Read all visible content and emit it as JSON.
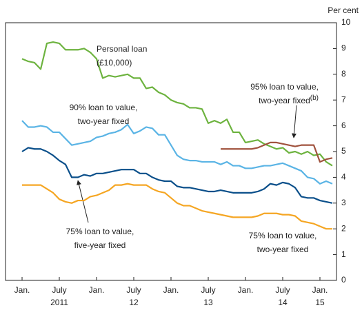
{
  "chart_data": {
    "type": "line",
    "y_axis_label": "Per cent",
    "x": [
      "2011-01",
      "2011-02",
      "2011-03",
      "2011-04",
      "2011-05",
      "2011-06",
      "2011-07",
      "2011-08",
      "2011-09",
      "2011-10",
      "2011-11",
      "2011-12",
      "2012-01",
      "2012-02",
      "2012-03",
      "2012-04",
      "2012-05",
      "2012-06",
      "2012-07",
      "2012-08",
      "2012-09",
      "2012-10",
      "2012-11",
      "2012-12",
      "2013-01",
      "2013-02",
      "2013-03",
      "2013-04",
      "2013-05",
      "2013-06",
      "2013-07",
      "2013-08",
      "2013-09",
      "2013-10",
      "2013-11",
      "2013-12",
      "2014-01",
      "2014-02",
      "2014-03",
      "2014-04",
      "2014-05",
      "2014-06",
      "2014-07",
      "2014-08",
      "2014-09",
      "2014-10",
      "2014-11",
      "2014-12",
      "2015-01",
      "2015-02",
      "2015-03"
    ],
    "xticks": [
      {
        "value": "2011-01",
        "label": "Jan."
      },
      {
        "value": "2011-07",
        "label": "July"
      },
      {
        "value": "2012-01",
        "label": "Jan."
      },
      {
        "value": "2012-07",
        "label": "July"
      },
      {
        "value": "2013-01",
        "label": "Jan."
      },
      {
        "value": "2013-07",
        "label": "July"
      },
      {
        "value": "2014-01",
        "label": "Jan."
      },
      {
        "value": "2014-07",
        "label": "July"
      },
      {
        "value": "2015-01",
        "label": "Jan."
      }
    ],
    "year_labels": [
      {
        "value": "2011-07",
        "label": "2011"
      },
      {
        "value": "2012-07",
        "label": "12"
      },
      {
        "value": "2013-07",
        "label": "13"
      },
      {
        "value": "2014-07",
        "label": "14"
      },
      {
        "value": "2015-01",
        "label": "15"
      }
    ],
    "ylim": [
      0,
      10
    ],
    "yticks": [
      0,
      1,
      2,
      3,
      4,
      5,
      6,
      7,
      8,
      9,
      10
    ],
    "series": [
      {
        "label": [
          "Personal loan",
          "(£10,000)"
        ],
        "color": "#6db33f",
        "values": [
          8.6,
          8.5,
          8.45,
          8.2,
          9.2,
          9.25,
          9.2,
          8.95,
          8.95,
          8.95,
          9.0,
          8.85,
          8.6,
          7.85,
          7.95,
          7.9,
          7.95,
          8.0,
          7.85,
          7.85,
          7.45,
          7.5,
          7.3,
          7.2,
          7.0,
          6.9,
          6.85,
          6.7,
          6.7,
          6.65,
          6.1,
          6.2,
          6.1,
          6.25,
          5.75,
          5.75,
          5.35,
          5.4,
          5.45,
          5.3,
          5.2,
          5.1,
          5.15,
          4.95,
          5.0,
          4.9,
          5.0,
          4.85,
          4.9,
          4.6,
          4.45
        ]
      },
      {
        "label": [
          "90% loan to value,",
          "two-year fixed"
        ],
        "color": "#5ab4e5",
        "values": [
          6.2,
          5.95,
          5.95,
          6.0,
          5.95,
          5.75,
          5.75,
          5.5,
          5.25,
          5.3,
          5.35,
          5.4,
          5.55,
          5.6,
          5.7,
          5.75,
          5.85,
          6.05,
          5.7,
          5.8,
          5.95,
          5.9,
          5.65,
          5.65,
          5.25,
          4.85,
          4.7,
          4.65,
          4.65,
          4.6,
          4.6,
          4.6,
          4.5,
          4.6,
          4.45,
          4.45,
          4.35,
          4.35,
          4.4,
          4.45,
          4.45,
          4.5,
          4.55,
          4.45,
          4.35,
          4.25,
          4.0,
          3.95,
          3.75,
          3.85,
          3.75
        ]
      },
      {
        "label": [
          "95% loan to value,",
          "two-year fixed"
        ],
        "label_note": "(b)",
        "color": "#a0523d",
        "values": [
          null,
          null,
          null,
          null,
          null,
          null,
          null,
          null,
          null,
          null,
          null,
          null,
          null,
          null,
          null,
          null,
          null,
          null,
          null,
          null,
          null,
          null,
          null,
          null,
          null,
          null,
          null,
          null,
          null,
          null,
          null,
          null,
          5.1,
          5.1,
          5.1,
          5.1,
          5.1,
          5.1,
          5.15,
          5.25,
          5.35,
          5.35,
          5.3,
          5.25,
          5.2,
          5.25,
          5.25,
          5.25,
          4.6,
          4.7,
          4.75
        ]
      },
      {
        "label": [
          "75% loan to value,",
          "five-year fixed"
        ],
        "color": "#0a4f8a",
        "values": [
          5.0,
          5.15,
          5.1,
          5.1,
          5.0,
          4.85,
          4.65,
          4.5,
          4.0,
          4.0,
          4.1,
          4.05,
          4.15,
          4.15,
          4.2,
          4.25,
          4.3,
          4.3,
          4.3,
          4.15,
          4.15,
          4.0,
          3.9,
          3.85,
          3.85,
          3.65,
          3.6,
          3.6,
          3.55,
          3.5,
          3.45,
          3.45,
          3.5,
          3.45,
          3.4,
          3.4,
          3.4,
          3.4,
          3.45,
          3.55,
          3.75,
          3.7,
          3.8,
          3.75,
          3.6,
          3.25,
          3.2,
          3.2,
          3.1,
          3.05,
          3.0
        ]
      },
      {
        "label": [
          "75% loan to value,",
          "two-year fixed"
        ],
        "color": "#f5a623",
        "values": [
          3.7,
          3.7,
          3.7,
          3.7,
          3.55,
          3.4,
          3.15,
          3.05,
          3.0,
          3.1,
          3.1,
          3.25,
          3.3,
          3.4,
          3.5,
          3.7,
          3.7,
          3.75,
          3.7,
          3.7,
          3.7,
          3.55,
          3.45,
          3.4,
          3.2,
          3.0,
          2.9,
          2.9,
          2.8,
          2.7,
          2.65,
          2.6,
          2.55,
          2.5,
          2.45,
          2.45,
          2.45,
          2.45,
          2.5,
          2.6,
          2.6,
          2.6,
          2.55,
          2.55,
          2.5,
          2.3,
          2.25,
          2.2,
          2.1,
          2.0,
          2.0
        ]
      }
    ]
  }
}
